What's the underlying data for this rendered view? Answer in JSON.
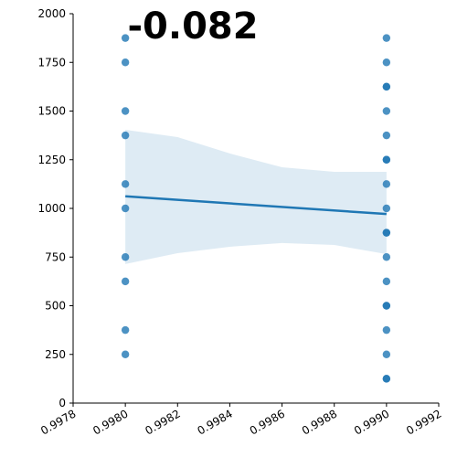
{
  "chart_data": {
    "type": "regplot",
    "title": "-0.082",
    "color": "#1f77b4",
    "x": [
      0.998,
      0.998,
      0.998,
      0.998,
      0.998,
      0.998,
      0.998,
      0.998,
      0.998,
      0.998,
      0.999,
      0.999,
      0.999,
      0.999,
      0.999,
      0.999,
      0.999,
      0.999,
      0.999,
      0.999,
      0.999,
      0.999,
      0.999,
      0.999,
      0.999,
      0.999,
      0.999,
      0.999,
      0.999,
      0.999
    ],
    "y": [
      1875,
      1750,
      1500,
      1375,
      1125,
      1000,
      750,
      625,
      375,
      250,
      1875,
      1750,
      1625,
      1625,
      1500,
      1375,
      1250,
      1250,
      1125,
      1000,
      875,
      875,
      750,
      625,
      500,
      500,
      375,
      250,
      125,
      125
    ],
    "line": {
      "x": [
        0.998,
        0.999
      ],
      "values": [
        1062,
        971
      ]
    },
    "band": {
      "x": [
        0.998,
        0.9982,
        0.9984,
        0.9986,
        0.9988,
        0.999
      ],
      "upper": [
        1404,
        1366,
        1282,
        1211,
        1188,
        1188
      ],
      "lower": [
        714,
        770,
        803,
        822,
        812,
        765
      ]
    },
    "xlim": [
      0.9978,
      0.9992
    ],
    "xticks": [
      0.9978,
      {
        "value": 0.998,
        "label": "0.9980"
      },
      0.9982,
      0.9984,
      0.9986,
      0.9988,
      {
        "value": 0.999,
        "label": "0.9990"
      },
      0.9992
    ],
    "ylim": [
      0,
      2000
    ],
    "yticks": [
      0,
      250,
      500,
      750,
      1000,
      1250,
      1500,
      1750,
      2000
    ]
  }
}
